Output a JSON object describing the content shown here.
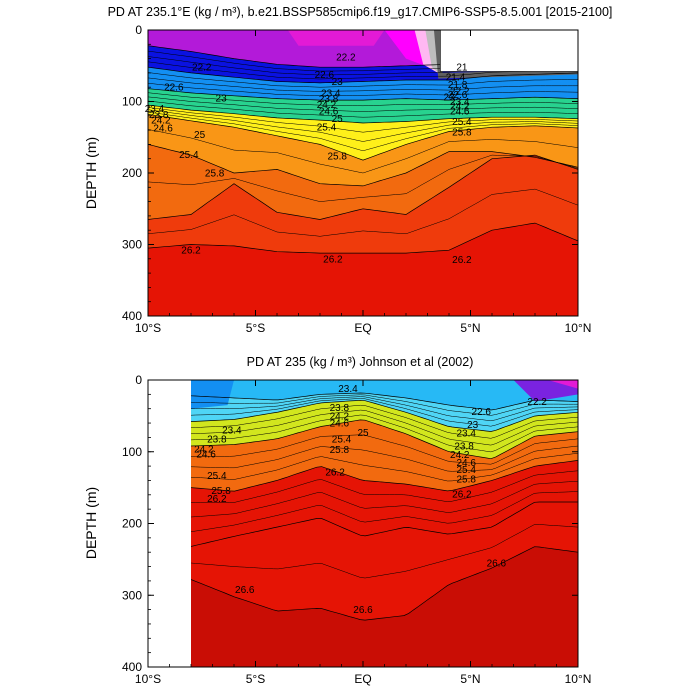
{
  "chart_data": [
    {
      "type": "heatmap",
      "subtype": "filled-contour",
      "title": "PD AT 235.1°E (kg / m³), b.e21.BSSP585cmip6.f19_g17.CMIP6-SSP5-8.5.001 [2015-2100]",
      "ylabel": "DEPTH (m)",
      "xlabel": "",
      "x_ticks": [
        "10°S",
        "5°S",
        "EQ",
        "5°N",
        "10°N"
      ],
      "x_tick_values": [
        -10,
        -5,
        0,
        5,
        10
      ],
      "y_ticks": [
        "0",
        "100",
        "200",
        "300",
        "400"
      ],
      "y_tick_values": [
        0,
        100,
        200,
        300,
        400
      ],
      "xlim": [
        -10,
        10
      ],
      "ylim": [
        400,
        0
      ],
      "data_xlim": [
        -10,
        10
      ],
      "no_data_region": {
        "x": [
          3.6,
          10
        ],
        "depth": [
          0,
          58
        ]
      },
      "contour_levels": [
        21,
        21.4,
        21.8,
        22.2,
        22.6,
        23,
        23.4,
        23.8,
        24.2,
        24.6,
        25,
        25.4,
        25.8,
        26.2
      ],
      "depth_profiles": [
        {
          "x": [
            -10,
            -8,
            -6,
            -4,
            -2,
            0,
            2,
            4,
            6,
            8,
            10
          ],
          "depth": [
            22,
            30,
            40,
            48,
            52,
            52,
            50,
            48,
            44,
            44,
            45
          ]
        },
        {
          "x": [
            -10,
            -8,
            -6,
            -4,
            -2,
            0,
            2,
            4,
            6,
            8,
            10
          ],
          "depth": [
            52,
            60,
            66,
            72,
            74,
            72,
            70,
            70,
            64,
            62,
            60
          ]
        },
        {
          "x": [
            -10,
            -8,
            -6,
            -4,
            -2,
            0,
            2,
            4,
            6,
            8,
            10
          ],
          "depth": [
            82,
            88,
            92,
            96,
            98,
            98,
            96,
            98,
            96,
            94,
            96
          ]
        },
        {
          "x": [
            -10,
            -8,
            -6,
            -4,
            -2,
            0,
            2,
            4,
            6,
            8,
            10
          ],
          "depth": [
            105,
            112,
            117,
            123,
            126,
            130,
            128,
            124,
            122,
            122,
            124
          ]
        },
        {
          "x": [
            -10,
            -8,
            -6,
            -4,
            -2,
            0,
            2,
            4,
            6,
            8,
            10
          ],
          "depth": [
            118,
            127,
            136,
            148,
            160,
            182,
            160,
            142,
            136,
            134,
            137
          ]
        },
        {
          "x": [
            -10,
            -8,
            -6,
            -4,
            -2,
            0,
            2,
            4,
            6,
            8,
            10
          ],
          "depth": [
            160,
            175,
            200,
            195,
            215,
            218,
            200,
            170,
            170,
            178,
            192
          ]
        },
        {
          "x": [
            -10,
            -8,
            -6,
            -4,
            -2,
            0,
            2,
            4,
            6,
            8,
            10
          ],
          "depth": [
            265,
            258,
            215,
            255,
            265,
            250,
            258,
            220,
            180,
            175,
            195
          ]
        },
        {
          "x": [
            -10,
            -8,
            -6,
            -4,
            -2,
            0,
            2,
            4,
            6,
            8,
            10
          ],
          "depth": [
            305,
            300,
            302,
            310,
            312,
            312,
            312,
            308,
            280,
            270,
            295
          ]
        }
      ],
      "contour_labels": [
        {
          "text": "22.2",
          "x": -7.5,
          "depth": 52
        },
        {
          "text": "22.2",
          "x": -0.8,
          "depth": 38
        },
        {
          "text": "22.6",
          "x": -8.8,
          "depth": 80
        },
        {
          "text": "22.6",
          "x": -1.8,
          "depth": 62
        },
        {
          "text": "23",
          "x": -6.6,
          "depth": 95
        },
        {
          "text": "23",
          "x": -1.2,
          "depth": 72
        },
        {
          "text": "23.4",
          "x": -9.7,
          "depth": 110
        },
        {
          "text": "23.4",
          "x": -1.5,
          "depth": 88
        },
        {
          "text": "23.8",
          "x": -9.5,
          "depth": 118
        },
        {
          "text": "23.8",
          "x": -1.6,
          "depth": 96
        },
        {
          "text": "24.2",
          "x": -9.4,
          "depth": 126
        },
        {
          "text": "24.2",
          "x": -1.7,
          "depth": 104
        },
        {
          "text": "24.6",
          "x": -9.3,
          "depth": 137
        },
        {
          "text": "24.6",
          "x": -1.6,
          "depth": 113
        },
        {
          "text": "25",
          "x": -7.6,
          "depth": 146
        },
        {
          "text": "25",
          "x": -1.2,
          "depth": 124
        },
        {
          "text": "25.4",
          "x": -8.1,
          "depth": 174
        },
        {
          "text": "25.4",
          "x": -1.7,
          "depth": 136
        },
        {
          "text": "25.8",
          "x": -6.9,
          "depth": 200
        },
        {
          "text": "25.8",
          "x": -1.2,
          "depth": 176
        },
        {
          "text": "26.2",
          "x": -8.0,
          "depth": 308
        },
        {
          "text": "26.2",
          "x": -1.4,
          "depth": 320
        },
        {
          "text": "26.2",
          "x": 4.6,
          "depth": 321
        },
        {
          "text": "21",
          "x": 4.6,
          "depth": 52
        },
        {
          "text": "21.4",
          "x": 4.3,
          "depth": 66
        },
        {
          "text": "21.8",
          "x": 4.4,
          "depth": 76
        },
        {
          "text": "22.2",
          "x": 4.5,
          "depth": 85
        },
        {
          "text": "22.6",
          "x": 4.4,
          "depth": 90
        },
        {
          "text": "23",
          "x": 4.0,
          "depth": 94
        },
        {
          "text": "23.4",
          "x": 4.5,
          "depth": 100
        },
        {
          "text": "24.2",
          "x": 4.5,
          "depth": 106
        },
        {
          "text": "24.6",
          "x": 4.5,
          "depth": 113
        },
        {
          "text": "25.4",
          "x": 4.6,
          "depth": 128
        },
        {
          "text": "25.8",
          "x": 4.6,
          "depth": 143
        }
      ]
    },
    {
      "type": "heatmap",
      "subtype": "filled-contour",
      "title": "PD AT 235 (kg / m³) Johnson et al (2002)",
      "ylabel": "DEPTH (m)",
      "xlabel": "",
      "x_ticks": [
        "10°S",
        "5°S",
        "EQ",
        "5°N",
        "10°N"
      ],
      "x_tick_values": [
        -10,
        -5,
        0,
        5,
        10
      ],
      "y_ticks": [
        "0",
        "100",
        "200",
        "300",
        "400"
      ],
      "y_tick_values": [
        0,
        100,
        200,
        300,
        400
      ],
      "xlim": [
        -10,
        10
      ],
      "ylim": [
        400,
        0
      ],
      "data_xlim": [
        -8,
        10
      ],
      "contour_levels": [
        22.2,
        22.6,
        23,
        23.4,
        23.8,
        24.2,
        24.6,
        25,
        25.4,
        25.8,
        26.2,
        26.6
      ],
      "depth_profiles": [
        {
          "x": [
            -8,
            -6,
            -4,
            -2,
            0,
            2,
            4,
            6,
            8,
            10
          ],
          "depth": [
            22,
            25,
            28,
            20,
            18,
            25,
            35,
            42,
            28,
            30
          ]
        },
        {
          "x": [
            -8,
            -6,
            -4,
            -2,
            0,
            2,
            4,
            6,
            8,
            10
          ],
          "depth": [
            58,
            55,
            45,
            32,
            28,
            45,
            65,
            72,
            50,
            45
          ]
        },
        {
          "x": [
            -8,
            -6,
            -4,
            -2,
            0,
            2,
            4,
            6,
            8,
            10
          ],
          "depth": [
            92,
            90,
            82,
            65,
            55,
            75,
            100,
            110,
            78,
            72
          ]
        },
        {
          "x": [
            -8,
            -6,
            -4,
            -2,
            0,
            2,
            4,
            6,
            8,
            10
          ],
          "depth": [
            150,
            155,
            140,
            120,
            140,
            145,
            155,
            140,
            120,
            112
          ]
        },
        {
          "x": [
            -8,
            -6,
            -4,
            -2,
            0,
            2,
            4,
            6,
            8,
            10
          ],
          "depth": [
            232,
            218,
            205,
            192,
            218,
            205,
            215,
            205,
            170,
            170
          ]
        },
        {
          "x": [
            -8,
            -6,
            -4,
            -2,
            0,
            2,
            4,
            6,
            8,
            10
          ],
          "depth": [
            278,
            302,
            322,
            318,
            335,
            328,
            285,
            262,
            232,
            240
          ]
        }
      ],
      "contour_labels": [
        {
          "text": "23.4",
          "x": -0.7,
          "depth": 12
        },
        {
          "text": "23.4",
          "x": -6.1,
          "depth": 70
        },
        {
          "text": "23.8",
          "x": -1.1,
          "depth": 38
        },
        {
          "text": "23.8",
          "x": -6.8,
          "depth": 82
        },
        {
          "text": "24.2",
          "x": -1.1,
          "depth": 50
        },
        {
          "text": "24.2",
          "x": -7.4,
          "depth": 96
        },
        {
          "text": "24.6",
          "x": -1.1,
          "depth": 60
        },
        {
          "text": "24.6",
          "x": -7.3,
          "depth": 103
        },
        {
          "text": "25",
          "x": 0,
          "depth": 73
        },
        {
          "text": "25.4",
          "x": -1.0,
          "depth": 82
        },
        {
          "text": "25.4",
          "x": -6.8,
          "depth": 133
        },
        {
          "text": "25.8",
          "x": -1.1,
          "depth": 97
        },
        {
          "text": "25.8",
          "x": -6.6,
          "depth": 154
        },
        {
          "text": "26.2",
          "x": -1.3,
          "depth": 128
        },
        {
          "text": "26.2",
          "x": -6.8,
          "depth": 165
        },
        {
          "text": "26.2",
          "x": 4.6,
          "depth": 159
        },
        {
          "text": "23.8",
          "x": 4.7,
          "depth": 92
        },
        {
          "text": "24.2",
          "x": 4.5,
          "depth": 104
        },
        {
          "text": "24.6",
          "x": 4.8,
          "depth": 115
        },
        {
          "text": "25.4",
          "x": 4.8,
          "depth": 125
        },
        {
          "text": "25.8",
          "x": 4.8,
          "depth": 138
        },
        {
          "text": "23",
          "x": 5.1,
          "depth": 62
        },
        {
          "text": "22.6",
          "x": 5.5,
          "depth": 44
        },
        {
          "text": "22.2",
          "x": 8.1,
          "depth": 30
        },
        {
          "text": "23.4",
          "x": 4.8,
          "depth": 74
        },
        {
          "text": "26.6",
          "x": -5.5,
          "depth": 292
        },
        {
          "text": "26.6",
          "x": 0,
          "depth": 320
        },
        {
          "text": "26.6",
          "x": 6.2,
          "depth": 255
        }
      ]
    }
  ],
  "colors": {
    "scale": [
      "#e31ad6",
      "#b31ad9",
      "#7a23e0",
      "#3a1fe6",
      "#0a12e0",
      "#0f5ef2",
      "#138ff2",
      "#27b9f5",
      "#4fd5f5",
      "#28d28f",
      "#38c92d",
      "#8ad925",
      "#d2e61e",
      "#fff01a",
      "#fcc61c",
      "#f99616",
      "#f26a0f",
      "#ef3b0c",
      "#e51405",
      "#c90d05"
    ],
    "no_data": "#ffffff",
    "upper_gray": [
      "#606060",
      "#8c8c8c",
      "#bdbdbd",
      "#ffb8f2",
      "#ff5cf0",
      "#ff00ff"
    ]
  }
}
